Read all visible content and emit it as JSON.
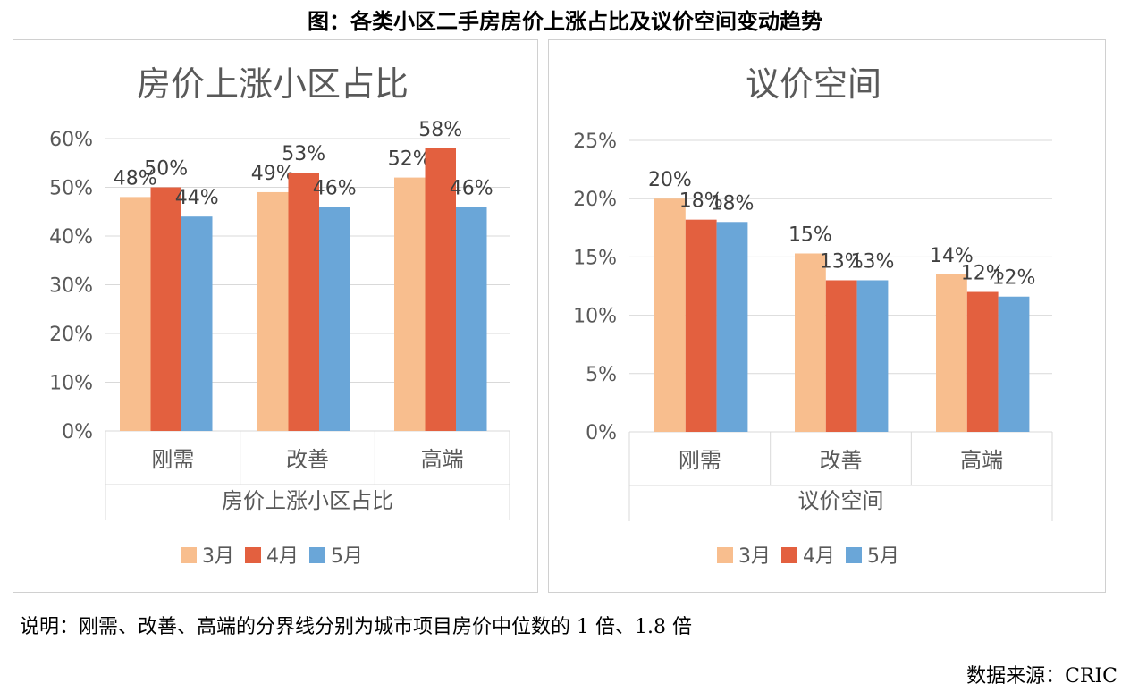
{
  "figure_title": "图：各类小区二手房房价上涨占比及议价空间变动趋势",
  "note": "说明：刚需、改善、高端的分界线分别为城市项目房价中位数的 1 倍、1.8 倍",
  "source": "数据来源：CRIC",
  "colors": {
    "m3": "#F8BE8E",
    "m4": "#E3603F",
    "m5": "#6AA6D8",
    "grid": "#d9d9d9",
    "text": "#595959"
  },
  "chart_data": [
    {
      "type": "bar",
      "title": "房价上涨小区占比",
      "xlabel": "房价上涨小区占比",
      "categories": [
        "刚需",
        "改善",
        "高端"
      ],
      "ylim": [
        0,
        60
      ],
      "yticks": [
        0,
        10,
        20,
        30,
        40,
        50,
        60
      ],
      "ytick_labels": [
        "0%",
        "10%",
        "20%",
        "30%",
        "40%",
        "50%",
        "60%"
      ],
      "legend_position": "bottom",
      "grid": true,
      "series": [
        {
          "name": "3月",
          "values": [
            48,
            49,
            52
          ],
          "labels": [
            "48%",
            "49%",
            "52%"
          ]
        },
        {
          "name": "4月",
          "values": [
            50,
            53,
            58
          ],
          "labels": [
            "50%",
            "53%",
            "58%"
          ]
        },
        {
          "name": "5月",
          "values": [
            44,
            46,
            46
          ],
          "labels": [
            "44%",
            "46%",
            "46%"
          ]
        }
      ]
    },
    {
      "type": "bar",
      "title": "议价空间",
      "xlabel": "议价空间",
      "categories": [
        "刚需",
        "改善",
        "高端"
      ],
      "ylim": [
        0,
        25
      ],
      "yticks": [
        0,
        5,
        10,
        15,
        20,
        25
      ],
      "ytick_labels": [
        "0%",
        "5%",
        "10%",
        "15%",
        "20%",
        "25%"
      ],
      "legend_position": "bottom",
      "grid": true,
      "series": [
        {
          "name": "3月",
          "values": [
            20,
            15.3,
            13.5
          ],
          "labels": [
            "20%",
            "15%",
            "14%"
          ]
        },
        {
          "name": "4月",
          "values": [
            18.2,
            13,
            12
          ],
          "labels": [
            "18%",
            "13%",
            "12%"
          ]
        },
        {
          "name": "5月",
          "values": [
            18,
            13,
            11.6
          ],
          "labels": [
            "18%",
            "13%",
            "12%"
          ]
        }
      ]
    }
  ]
}
